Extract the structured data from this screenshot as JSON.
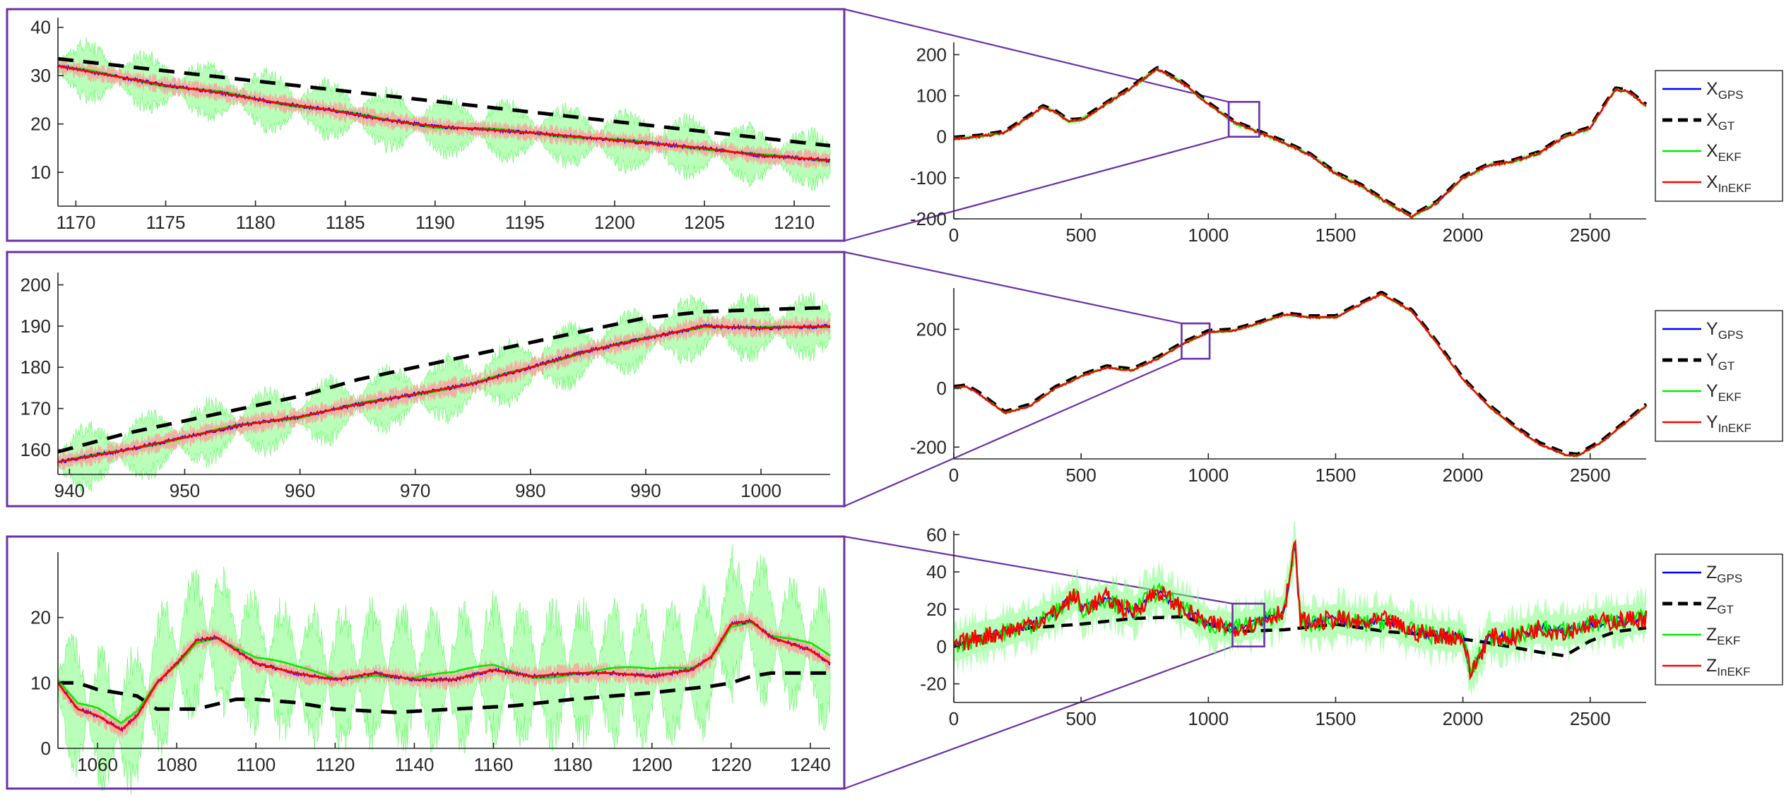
{
  "colors": {
    "gps": "#0000ff",
    "gt": "#000000",
    "ekf": "#00ee00",
    "inekf": "#ff0000",
    "ekf_band": "#7fff7f",
    "inekf_band": "#ff9a9a",
    "frame": "#6a31a8"
  },
  "chart_data": [
    {
      "id": "x-main",
      "type": "line",
      "x_ticks": [
        0,
        500,
        1000,
        1500,
        2000,
        2500
      ],
      "y_ticks": [
        -200,
        -100,
        0,
        100,
        200
      ],
      "xlim": [
        0,
        2720
      ],
      "ylim": [
        -200,
        230
      ],
      "zoom_region": {
        "x": [
          1080,
          1200
        ],
        "y": [
          0,
          85
        ]
      },
      "series": [
        {
          "name": "X",
          "sub": "GPS",
          "color": "gps",
          "style": "solid"
        },
        {
          "name": "X",
          "sub": "GT",
          "color": "gt",
          "style": "dashed"
        },
        {
          "name": "X",
          "sub": "EKF",
          "color": "ekf",
          "style": "solid"
        },
        {
          "name": "X",
          "sub": "InEKF",
          "color": "inekf",
          "style": "solid"
        }
      ],
      "trajectory": {
        "x": [
          0,
          100,
          200,
          300,
          350,
          400,
          450,
          500,
          600,
          700,
          800,
          900,
          1000,
          1100,
          1200,
          1300,
          1400,
          1500,
          1600,
          1700,
          1800,
          1900,
          2000,
          2100,
          2200,
          2300,
          2400,
          2500,
          2550,
          2600,
          2650,
          2720
        ],
        "y": [
          -5,
          0,
          10,
          50,
          72,
          60,
          38,
          40,
          80,
          120,
          165,
          130,
          80,
          35,
          10,
          -15,
          -45,
          -90,
          -120,
          -160,
          -195,
          -160,
          -100,
          -70,
          -60,
          -40,
          0,
          20,
          70,
          115,
          110,
          75
        ]
      }
    },
    {
      "id": "y-main",
      "type": "line",
      "x_ticks": [
        0,
        500,
        1000,
        1500,
        2000,
        2500
      ],
      "y_ticks": [
        -200,
        0,
        200
      ],
      "xlim": [
        0,
        2720
      ],
      "ylim": [
        -240,
        340
      ],
      "zoom_region": {
        "x": [
          895,
          1005
        ],
        "y": [
          100,
          220
        ]
      },
      "series": [
        {
          "name": "Y",
          "sub": "GPS",
          "color": "gps",
          "style": "solid"
        },
        {
          "name": "Y",
          "sub": "GT",
          "color": "gt",
          "style": "dashed"
        },
        {
          "name": "Y",
          "sub": "EKF",
          "color": "ekf",
          "style": "solid"
        },
        {
          "name": "Y",
          "sub": "InEKF",
          "color": "inekf",
          "style": "solid"
        }
      ],
      "trajectory": {
        "x": [
          0,
          50,
          100,
          200,
          300,
          400,
          500,
          600,
          700,
          800,
          900,
          1000,
          1100,
          1200,
          1300,
          1400,
          1500,
          1600,
          1680,
          1800,
          1900,
          2000,
          2100,
          2200,
          2300,
          2400,
          2450,
          2550,
          2650,
          2720
        ],
        "y": [
          0,
          5,
          -20,
          -85,
          -60,
          0,
          40,
          70,
          60,
          100,
          150,
          190,
          195,
          220,
          250,
          240,
          240,
          285,
          320,
          260,
          150,
          30,
          -60,
          -130,
          -190,
          -225,
          -230,
          -180,
          -110,
          -60
        ]
      }
    },
    {
      "id": "z-main",
      "type": "line",
      "x_ticks": [
        0,
        500,
        1000,
        1500,
        2000,
        2500
      ],
      "y_ticks": [
        -20,
        0,
        20,
        40,
        60
      ],
      "xlim": [
        0,
        2720
      ],
      "ylim": [
        -30,
        62
      ],
      "zoom_region": {
        "x": [
          1095,
          1220
        ],
        "y": [
          0,
          23
        ]
      },
      "series": [
        {
          "name": "Z",
          "sub": "GPS",
          "color": "gps",
          "style": "solid"
        },
        {
          "name": "Z",
          "sub": "GT",
          "color": "gt",
          "style": "dashed"
        },
        {
          "name": "Z",
          "sub": "EKF",
          "color": "ekf",
          "style": "solid"
        },
        {
          "name": "Z",
          "sub": "InEKF",
          "color": "inekf",
          "style": "solid"
        }
      ],
      "trajectory": {
        "x": [
          0,
          100,
          200,
          300,
          400,
          480,
          500,
          600,
          700,
          800,
          900,
          1000,
          1100,
          1200,
          1300,
          1340,
          1360,
          1400,
          1500,
          1600,
          1700,
          1800,
          1900,
          2000,
          2030,
          2100,
          2200,
          2300,
          2400,
          2500,
          2600,
          2720
        ],
        "y": [
          0,
          5,
          8,
          12,
          18,
          28,
          20,
          26,
          18,
          30,
          20,
          12,
          10,
          13,
          20,
          55,
          15,
          12,
          15,
          12,
          14,
          8,
          6,
          5,
          -15,
          5,
          5,
          10,
          8,
          12,
          14,
          15
        ]
      },
      "gt_trajectory": {
        "x": [
          0,
          100,
          300,
          500,
          700,
          900,
          1100,
          1300,
          1500,
          1700,
          1900,
          2100,
          2300,
          2400,
          2500,
          2600,
          2720
        ],
        "y": [
          0,
          5,
          10,
          12,
          15,
          16,
          8,
          9,
          12,
          8,
          6,
          2,
          -3,
          -5,
          3,
          8,
          10
        ]
      }
    },
    {
      "id": "x-inset",
      "type": "line",
      "x_ticks": [
        1170,
        1175,
        1180,
        1185,
        1190,
        1195,
        1200,
        1205,
        1210
      ],
      "y_ticks": [
        10,
        20,
        30,
        40
      ],
      "xlim": [
        1169,
        1212
      ],
      "ylim": [
        3,
        42
      ],
      "inekf_pts": {
        "x": [
          1169,
          1172,
          1175,
          1178,
          1181,
          1184,
          1187,
          1190,
          1193,
          1196,
          1199,
          1202,
          1205,
          1208,
          1212
        ],
        "y": [
          32,
          30,
          28,
          26.5,
          24.5,
          23,
          21,
          19.5,
          18.8,
          18,
          17,
          16,
          15,
          13.5,
          12.5
        ]
      },
      "gt_pts": {
        "x": [
          1169,
          1212
        ],
        "y": [
          33.5,
          15.5
        ]
      }
    },
    {
      "id": "y-inset",
      "type": "line",
      "x_ticks": [
        940,
        950,
        960,
        970,
        980,
        990,
        1000
      ],
      "y_ticks": [
        160,
        170,
        180,
        190,
        200
      ],
      "xlim": [
        939,
        1006
      ],
      "ylim": [
        154,
        203
      ],
      "inekf_pts": {
        "x": [
          939,
          945,
          950,
          955,
          960,
          965,
          970,
          975,
          980,
          985,
          990,
          995,
          1000,
          1006
        ],
        "y": [
          157,
          160,
          163,
          166,
          168,
          171,
          173.5,
          176,
          180,
          184,
          187,
          190,
          189.5,
          190
        ]
      },
      "gt_pts": {
        "x": [
          939,
          945,
          950,
          955,
          960,
          965,
          970,
          975,
          980,
          985,
          990,
          995,
          1000,
          1006
        ],
        "y": [
          159.5,
          164,
          167,
          170,
          173,
          177,
          180,
          183,
          186,
          189,
          192,
          193.5,
          194,
          194.5
        ]
      }
    },
    {
      "id": "z-inset",
      "type": "line",
      "x_ticks": [
        1060,
        1080,
        1100,
        1120,
        1140,
        1160,
        1180,
        1200,
        1220,
        1240
      ],
      "y_ticks": [
        0,
        10,
        20
      ],
      "xlim": [
        1050,
        1245
      ],
      "ylim": [
        0,
        30
      ],
      "inekf_pts": {
        "x": [
          1050,
          1055,
          1060,
          1066,
          1070,
          1075,
          1080,
          1085,
          1090,
          1095,
          1100,
          1110,
          1120,
          1130,
          1140,
          1150,
          1160,
          1170,
          1180,
          1190,
          1200,
          1210,
          1215,
          1220,
          1225,
          1230,
          1235,
          1240,
          1245
        ],
        "y": [
          10,
          6,
          5,
          2.8,
          5,
          10,
          13,
          16.5,
          17,
          15,
          13,
          11.5,
          10.5,
          11.5,
          10.5,
          10.5,
          12,
          11,
          11.5,
          11.5,
          11,
          12,
          14,
          19,
          19.5,
          17,
          16,
          15,
          13
        ]
      },
      "gt_pts": {
        "x": [
          1050,
          1055,
          1060,
          1070,
          1075,
          1085,
          1095,
          1100,
          1110,
          1120,
          1135,
          1150,
          1165,
          1180,
          1200,
          1215,
          1220,
          1225,
          1230,
          1245
        ],
        "y": [
          10,
          10,
          9,
          8,
          6,
          6,
          7.5,
          7.5,
          7,
          6,
          5.5,
          6,
          6.5,
          7.5,
          8.5,
          9.5,
          10,
          11,
          11.5,
          11.5
        ]
      }
    }
  ]
}
